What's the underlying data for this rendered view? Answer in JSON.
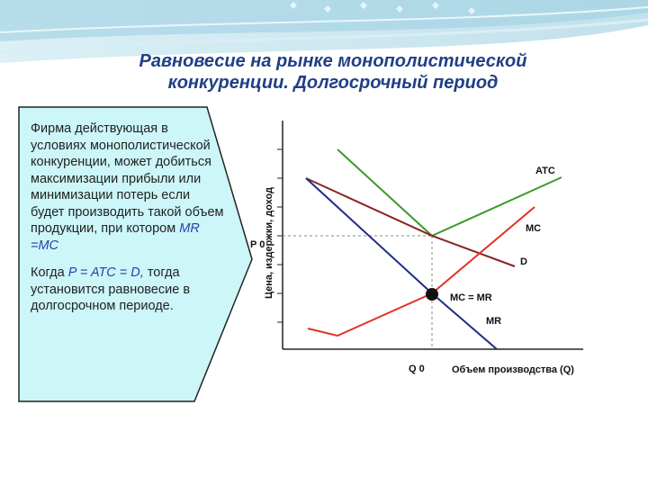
{
  "slide": {
    "title_line1": "Равновесие на рынке монополистической",
    "title_line2": "конкуренции. Долгосрочный период"
  },
  "callout": {
    "para1_text": "Фирма действующая в условиях монополистической конкуренции, может добиться максимизации прибыли или минимизации потерь если будет производить такой объем продукции, при котором",
    "para1_highlight": "MR =MC",
    "para2_prefix": "Когда",
    "para2_highlight": "P = ATC = D,",
    "para2_suffix": "тогда установится равновесие в долгосрочном периоде."
  },
  "diagram": {
    "y_axis_label": "Цена, издержки, доход",
    "x_axis_label": "Объем производства (Q)",
    "p0_label": "P 0",
    "q0_label": "Q 0",
    "curves": {
      "atc": "ATC",
      "mc": "MC",
      "d": "D",
      "mr": "MR",
      "mc_mr": "MC = MR"
    },
    "colors": {
      "atc": "#3a9a2a",
      "mc": "#e03325",
      "d": "#8b2222",
      "mr": "#1f2d86",
      "axis": "#222222",
      "dashed": "#888888"
    }
  }
}
